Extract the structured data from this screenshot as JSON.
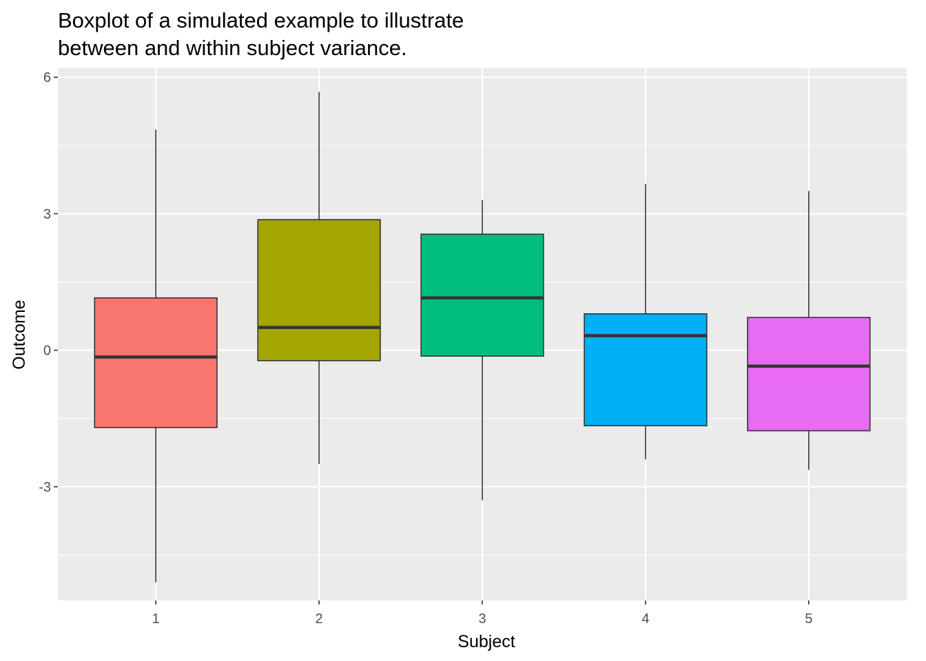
{
  "chart_data": {
    "type": "boxplot",
    "title": [
      "Boxplot of a simulated example to illustrate",
      "between and within subject variance."
    ],
    "xlabel": "Subject",
    "ylabel": "Outcome",
    "ylim": [
      -5.5,
      6.2
    ],
    "y_ticks": [
      -3,
      0,
      3,
      6
    ],
    "y_tick_labels": [
      "-3",
      "0",
      "3",
      "6"
    ],
    "grid": true,
    "panel_background": "#ebebeb",
    "grid_color": "#ffffff",
    "categories": [
      "1",
      "2",
      "3",
      "4",
      "5"
    ],
    "series": [
      {
        "x": "1",
        "min": -5.1,
        "q1": -1.7,
        "median": -0.15,
        "q3": 1.15,
        "max": 4.85,
        "color": "#F8766D"
      },
      {
        "x": "2",
        "min": -2.5,
        "q1": -0.23,
        "median": 0.5,
        "q3": 2.87,
        "max": 5.68,
        "color": "#A3A500"
      },
      {
        "x": "3",
        "min": -3.3,
        "q1": -0.13,
        "median": 1.15,
        "q3": 2.55,
        "max": 3.3,
        "color": "#00BF7D"
      },
      {
        "x": "4",
        "min": -2.4,
        "q1": -1.66,
        "median": 0.32,
        "q3": 0.8,
        "max": 3.65,
        "color": "#00B0F6"
      },
      {
        "x": "5",
        "min": -2.63,
        "q1": -1.77,
        "median": -0.35,
        "q3": 0.72,
        "max": 3.5,
        "color": "#E76BF3"
      }
    ]
  }
}
